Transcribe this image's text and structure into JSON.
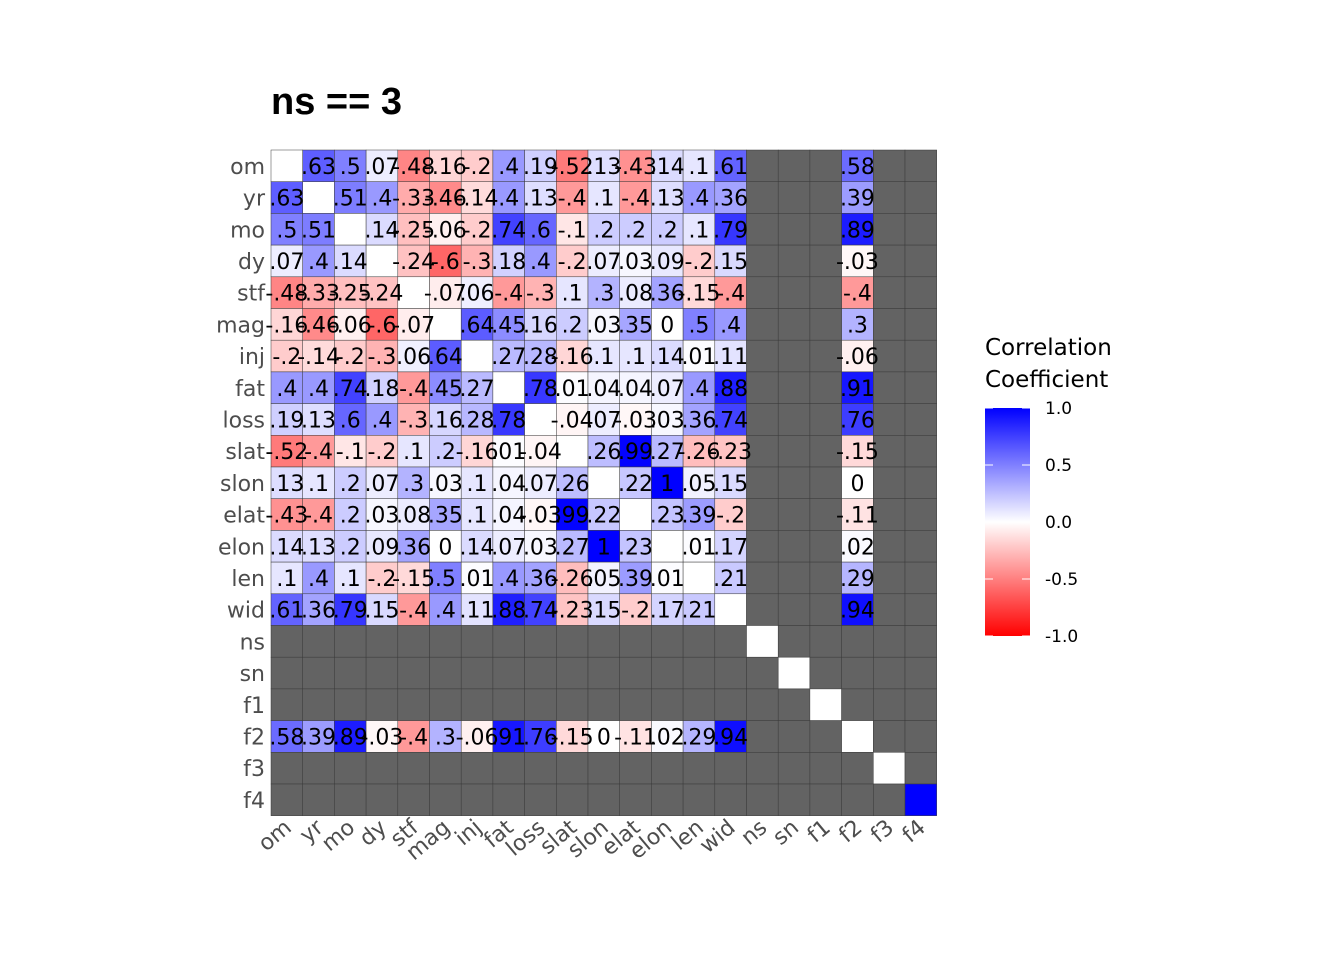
{
  "chart_data": {
    "type": "heatmap",
    "title": "ns == 3",
    "variables": [
      "om",
      "yr",
      "mo",
      "dy",
      "stf",
      "mag",
      "inj",
      "fat",
      "loss",
      "slat",
      "slon",
      "elat",
      "elon",
      "len",
      "wid",
      "ns",
      "sn",
      "f1",
      "f2",
      "f3",
      "f4"
    ],
    "matrix": [
      [
        1,
        0.63,
        0.5,
        0.07,
        -0.48,
        -0.16,
        -0.2,
        0.4,
        0.19,
        -0.52,
        0.13,
        -0.43,
        0.14,
        0.1,
        0.61,
        null,
        null,
        null,
        0.58,
        null,
        null
      ],
      [
        0.63,
        1,
        0.51,
        0.4,
        -0.33,
        -0.46,
        -0.14,
        0.4,
        0.13,
        -0.4,
        0.1,
        -0.4,
        0.13,
        0.4,
        0.36,
        null,
        null,
        null,
        0.39,
        null,
        null
      ],
      [
        0.5,
        0.51,
        1,
        0.14,
        -0.25,
        -0.06,
        -0.2,
        0.74,
        0.6,
        -0.1,
        0.2,
        0.2,
        0.2,
        0.1,
        0.79,
        null,
        null,
        null,
        0.89,
        null,
        null
      ],
      [
        0.07,
        0.4,
        0.14,
        1,
        -0.24,
        -0.6,
        -0.3,
        0.18,
        0.4,
        -0.2,
        0.07,
        0.03,
        0.09,
        -0.2,
        0.15,
        null,
        null,
        null,
        -0.03,
        null,
        null
      ],
      [
        -0.48,
        -0.33,
        -0.25,
        -0.24,
        1,
        -0.07,
        0.06,
        -0.4,
        -0.3,
        0.1,
        0.3,
        0.08,
        0.36,
        -0.15,
        -0.4,
        null,
        null,
        null,
        -0.4,
        null,
        null
      ],
      [
        -0.16,
        -0.46,
        -0.06,
        -0.6,
        -0.07,
        1,
        0.64,
        0.45,
        0.16,
        0.2,
        0.03,
        0.35,
        0,
        0.5,
        0.4,
        null,
        null,
        null,
        0.3,
        null,
        null
      ],
      [
        -0.2,
        -0.14,
        -0.2,
        -0.3,
        0.06,
        0.64,
        1,
        0.27,
        0.28,
        -0.16,
        0.1,
        0.1,
        0.14,
        0.01,
        0.11,
        null,
        null,
        null,
        -0.06,
        null,
        null
      ],
      [
        0.4,
        0.4,
        0.74,
        0.18,
        -0.4,
        0.45,
        0.27,
        1,
        0.78,
        0.01,
        0.04,
        0.04,
        0.07,
        0.4,
        0.88,
        null,
        null,
        null,
        0.91,
        null,
        null
      ],
      [
        0.19,
        0.13,
        0.6,
        0.4,
        -0.3,
        0.16,
        0.28,
        0.78,
        1,
        -0.04,
        0.07,
        -0.03,
        0.03,
        0.36,
        0.74,
        null,
        null,
        null,
        0.76,
        null,
        null
      ],
      [
        -0.52,
        -0.4,
        -0.1,
        -0.2,
        0.1,
        0.2,
        -0.16,
        0.01,
        -0.04,
        1,
        0.26,
        0.99,
        0.27,
        -0.26,
        -0.23,
        null,
        null,
        null,
        -0.15,
        null,
        null
      ],
      [
        0.13,
        0.1,
        0.2,
        0.07,
        0.3,
        0.03,
        0.1,
        0.04,
        0.07,
        0.26,
        1,
        0.22,
        1,
        0.05,
        0.15,
        null,
        null,
        null,
        0,
        null,
        null
      ],
      [
        -0.43,
        -0.4,
        0.2,
        0.03,
        0.08,
        0.35,
        0.1,
        0.04,
        -0.03,
        0.99,
        0.22,
        1,
        0.23,
        0.39,
        -0.2,
        null,
        null,
        null,
        -0.11,
        null,
        null
      ],
      [
        0.14,
        0.13,
        0.2,
        0.09,
        0.36,
        0,
        0.14,
        0.07,
        0.03,
        0.27,
        1,
        0.23,
        1,
        0.01,
        0.17,
        null,
        null,
        null,
        0.02,
        null,
        null
      ],
      [
        0.1,
        0.4,
        0.1,
        -0.2,
        -0.15,
        0.5,
        0.01,
        0.4,
        0.36,
        -0.26,
        0.05,
        0.39,
        0.01,
        1,
        0.21,
        null,
        null,
        null,
        0.29,
        null,
        null
      ],
      [
        0.61,
        0.36,
        0.79,
        0.15,
        -0.4,
        0.4,
        0.11,
        0.88,
        0.74,
        -0.23,
        0.15,
        -0.2,
        0.17,
        0.21,
        1,
        null,
        null,
        null,
        0.94,
        null,
        null
      ],
      [
        null,
        null,
        null,
        null,
        null,
        null,
        null,
        null,
        null,
        null,
        null,
        null,
        null,
        null,
        null,
        1,
        null,
        null,
        null,
        null,
        null
      ],
      [
        null,
        null,
        null,
        null,
        null,
        null,
        null,
        null,
        null,
        null,
        null,
        null,
        null,
        null,
        null,
        null,
        1,
        null,
        null,
        null,
        null
      ],
      [
        null,
        null,
        null,
        null,
        null,
        null,
        null,
        null,
        null,
        null,
        null,
        null,
        null,
        null,
        null,
        null,
        null,
        1,
        null,
        null,
        null
      ],
      [
        0.58,
        0.39,
        0.89,
        -0.03,
        -0.4,
        0.3,
        -0.06,
        0.91,
        0.76,
        -0.15,
        0,
        -0.11,
        0.02,
        0.29,
        0.94,
        null,
        null,
        null,
        1,
        null,
        null
      ],
      [
        null,
        null,
        null,
        null,
        null,
        null,
        null,
        null,
        null,
        null,
        null,
        null,
        null,
        null,
        null,
        null,
        null,
        null,
        null,
        1,
        null
      ],
      [
        null,
        null,
        null,
        null,
        null,
        null,
        null,
        null,
        null,
        null,
        null,
        null,
        null,
        null,
        null,
        null,
        null,
        null,
        null,
        null,
        1
      ]
    ],
    "labels_shown": "lower-left block and f2 column/row, diagonal omitted",
    "na_color": "#636363",
    "color_scale": {
      "low": "#ff0000",
      "mid": "#ffffff",
      "high": "#0000ff",
      "range": [
        -1,
        1
      ]
    },
    "legend": {
      "title_lines": [
        "Correlation",
        "Coefficient"
      ],
      "ticks": [
        "1.0",
        "0.5",
        "0.0",
        "-0.5",
        "-1.0"
      ],
      "tick_values": [
        1,
        0.5,
        0,
        -0.5,
        -1
      ],
      "placement": "right"
    }
  }
}
